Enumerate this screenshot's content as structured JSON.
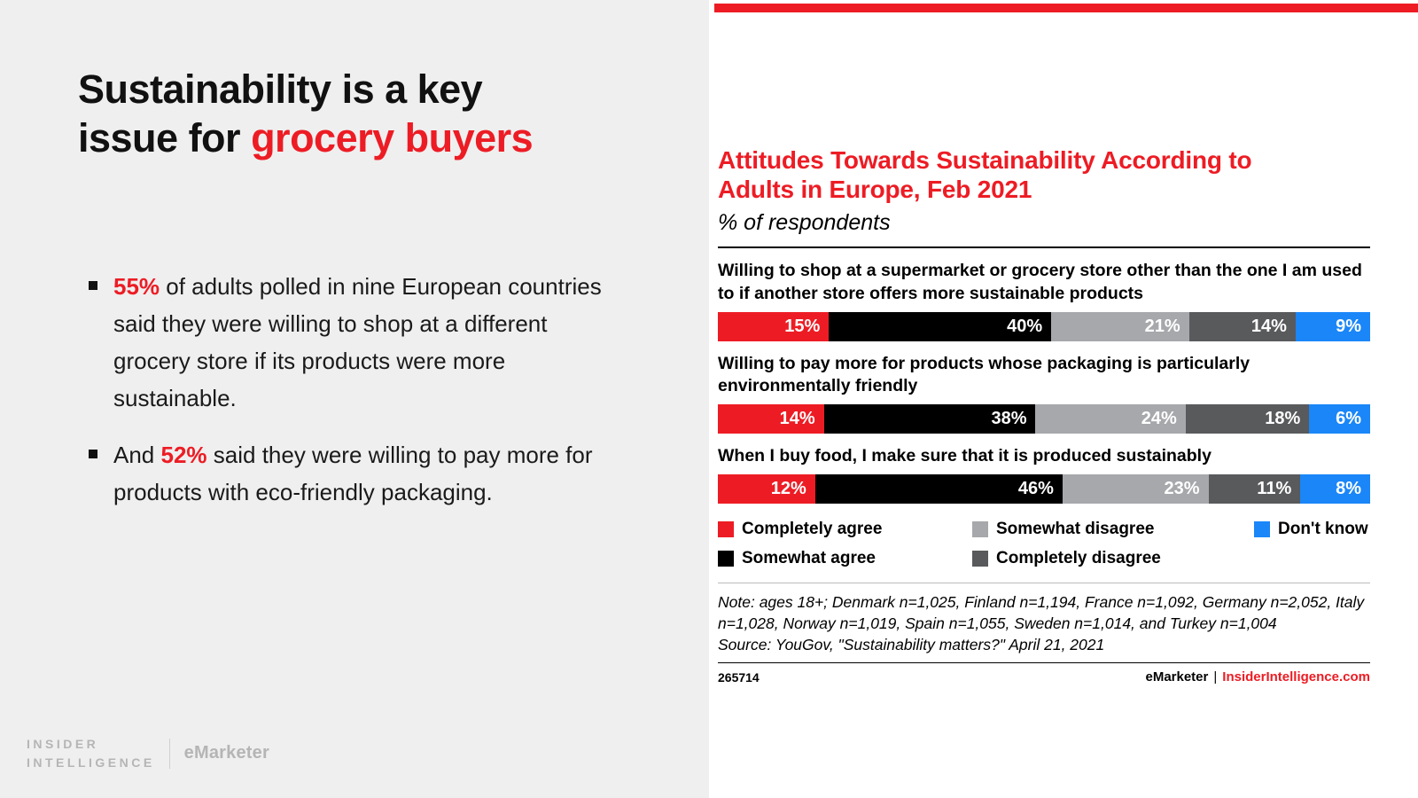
{
  "slide": {
    "title": {
      "line1": "Sustainability is a key",
      "line2_black": "issue for ",
      "line2_red": "grocery buyers"
    },
    "bullets": [
      {
        "pre": "",
        "highlight": "55%",
        "post": " of adults polled in nine European countries said they were willing to shop at a different grocery store if its products were more sustainable."
      },
      {
        "pre": "And ",
        "highlight": "52%",
        "post": " said they were willing to pay more for products with eco-friendly packaging."
      }
    ],
    "brand": {
      "insider_line1": "INSIDER",
      "insider_line2": "INTELLIGENCE",
      "emarketer": "eMarketer"
    }
  },
  "chart": {
    "title_line1": "Attitudes Towards Sustainability According to",
    "title_line2": "Adults in Europe, Feb 2021",
    "subtitle": "% of respondents"
  },
  "chart_data": {
    "type": "bar",
    "stacked": true,
    "orientation": "horizontal",
    "title": "Attitudes Towards Sustainability According to Adults in Europe, Feb 2021",
    "subtitle": "% of respondents",
    "value_suffix": "%",
    "xlim": [
      0,
      100
    ],
    "legend_position": "bottom",
    "categories": [
      "Willing to shop at a supermarket or grocery store other than the one I am used to if another store offers more sustainable products",
      "Willing to pay more for products whose packaging is particularly environmentally friendly",
      "When I buy food, I make sure that it is produced sustainably"
    ],
    "series": [
      {
        "name": "Completely agree",
        "color": "#ed1c24",
        "values": [
          15,
          14,
          12
        ]
      },
      {
        "name": "Somewhat agree",
        "color": "#000000",
        "values": [
          40,
          38,
          46
        ]
      },
      {
        "name": "Somewhat disagree",
        "color": "#a6a8ab",
        "values": [
          21,
          24,
          23
        ]
      },
      {
        "name": "Completely disagree",
        "color": "#595a5c",
        "values": [
          14,
          18,
          11
        ]
      },
      {
        "name": "Don't know",
        "color": "#1a86f8",
        "values": [
          9,
          6,
          8
        ]
      }
    ]
  },
  "notes": {
    "note": "Note: ages 18+; Denmark n=1,025, Finland n=1,194, France n=1,092, Germany n=2,052, Italy n=1,028, Norway n=1,019, Spain n=1,055, Sweden n=1,014, and Turkey n=1,004",
    "source": "Source: YouGov, \"Sustainability matters?\" April 21, 2021",
    "chart_id": "265714",
    "footer_emarketer": "eMarketer",
    "footer_sep": "|",
    "footer_ii": "InsiderIntelligence.com"
  }
}
